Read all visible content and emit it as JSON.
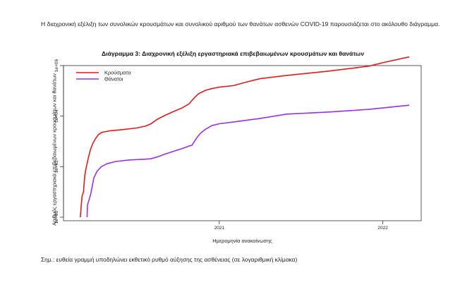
{
  "intro_text": "Η διαχρονική εξέλιξη των συνολικών κρουσμάτων και συνολικού αριθμού των θανάτων ασθενών COVID-19 παρουσιάζεται στο ακόλουθο διάγραμμα.",
  "note_text": "Σημ.: ευθεία γραμμή υποδηλώνει εκθετικό ρυθμό αύξησης της ασθένειας (σε λογαριθμική κλίμακα)",
  "colors": {
    "cases": "#e31a1c",
    "deaths": "#9b30e6"
  },
  "chart_data": {
    "type": "line",
    "title": "Διάγραμμα 3: Διαχρονική εξέλιξη εργαστηριακά επιβεβαιωμένων κρουσμάτων και θανάτων",
    "xlabel": "Ημερομηνία ανακοίνωσης",
    "ylabel": "Αριθμός εργαστηριακά επιβεβαιωμένων κρουσμάτων και θανάτων",
    "y_scale": "log",
    "ylim": [
      1,
      1000000
    ],
    "y_ticks": [
      1,
      100,
      10000,
      1000000
    ],
    "y_tick_labels": [
      "1e+00",
      "1e+02",
      "1e+04",
      "1e+06"
    ],
    "xlim": [
      "2020-02-01",
      "2022-03-15"
    ],
    "x_ticks": [
      "2021-01-01",
      "2022-01-01"
    ],
    "x_tick_labels": [
      "2021",
      "2022"
    ],
    "legend_position": "top-left",
    "grid": false,
    "series": [
      {
        "name": "Κρούσματα",
        "color": "#e31a1c",
        "points": [
          [
            "2020-02-26",
            1
          ],
          [
            "2020-02-28",
            3
          ],
          [
            "2020-03-01",
            7
          ],
          [
            "2020-03-04",
            10
          ],
          [
            "2020-03-07",
            45
          ],
          [
            "2020-03-10",
            90
          ],
          [
            "2020-03-15",
            230
          ],
          [
            "2020-03-20",
            500
          ],
          [
            "2020-03-25",
            850
          ],
          [
            "2020-03-31",
            1300
          ],
          [
            "2020-04-07",
            1900
          ],
          [
            "2020-04-15",
            2300
          ],
          [
            "2020-05-01",
            2600
          ],
          [
            "2020-06-01",
            2950
          ],
          [
            "2020-07-01",
            3400
          ],
          [
            "2020-07-20",
            4000
          ],
          [
            "2020-08-01",
            4900
          ],
          [
            "2020-08-15",
            7400
          ],
          [
            "2020-09-01",
            10500
          ],
          [
            "2020-09-20",
            15000
          ],
          [
            "2020-10-10",
            21000
          ],
          [
            "2020-10-25",
            30000
          ],
          [
            "2020-11-05",
            50000
          ],
          [
            "2020-11-15",
            75000
          ],
          [
            "2020-12-01",
            105000
          ],
          [
            "2020-12-15",
            122000
          ],
          [
            "2021-01-01",
            140000
          ],
          [
            "2021-02-01",
            160000
          ],
          [
            "2021-03-01",
            220000
          ],
          [
            "2021-04-01",
            300000
          ],
          [
            "2021-06-01",
            410000
          ],
          [
            "2021-09-01",
            600000
          ],
          [
            "2021-12-01",
            950000
          ],
          [
            "2022-01-01",
            1300000
          ],
          [
            "2022-03-01",
            2200000
          ]
        ]
      },
      {
        "name": "Θάνατοι",
        "color": "#9b30e6",
        "points": [
          [
            "2020-03-12",
            1
          ],
          [
            "2020-03-13",
            3
          ],
          [
            "2020-03-15",
            4
          ],
          [
            "2020-03-20",
            8
          ],
          [
            "2020-03-23",
            15
          ],
          [
            "2020-03-27",
            35
          ],
          [
            "2020-04-03",
            65
          ],
          [
            "2020-04-13",
            100
          ],
          [
            "2020-04-25",
            130
          ],
          [
            "2020-05-15",
            160
          ],
          [
            "2020-06-15",
            185
          ],
          [
            "2020-07-15",
            195
          ],
          [
            "2020-08-01",
            205
          ],
          [
            "2020-08-15",
            240
          ],
          [
            "2020-09-01",
            310
          ],
          [
            "2020-09-20",
            400
          ],
          [
            "2020-10-10",
            520
          ],
          [
            "2020-10-25",
            650
          ],
          [
            "2020-11-01",
            700
          ],
          [
            "2020-11-12",
            1400
          ],
          [
            "2020-11-20",
            2100
          ],
          [
            "2020-12-01",
            3000
          ],
          [
            "2020-12-15",
            4200
          ],
          [
            "2021-01-01",
            5000
          ],
          [
            "2021-02-01",
            5800
          ],
          [
            "2021-04-01",
            8000
          ],
          [
            "2021-06-01",
            12000
          ],
          [
            "2021-09-01",
            14500
          ],
          [
            "2021-12-01",
            18500
          ],
          [
            "2022-01-01",
            21000
          ],
          [
            "2022-03-01",
            27000
          ]
        ]
      }
    ]
  }
}
